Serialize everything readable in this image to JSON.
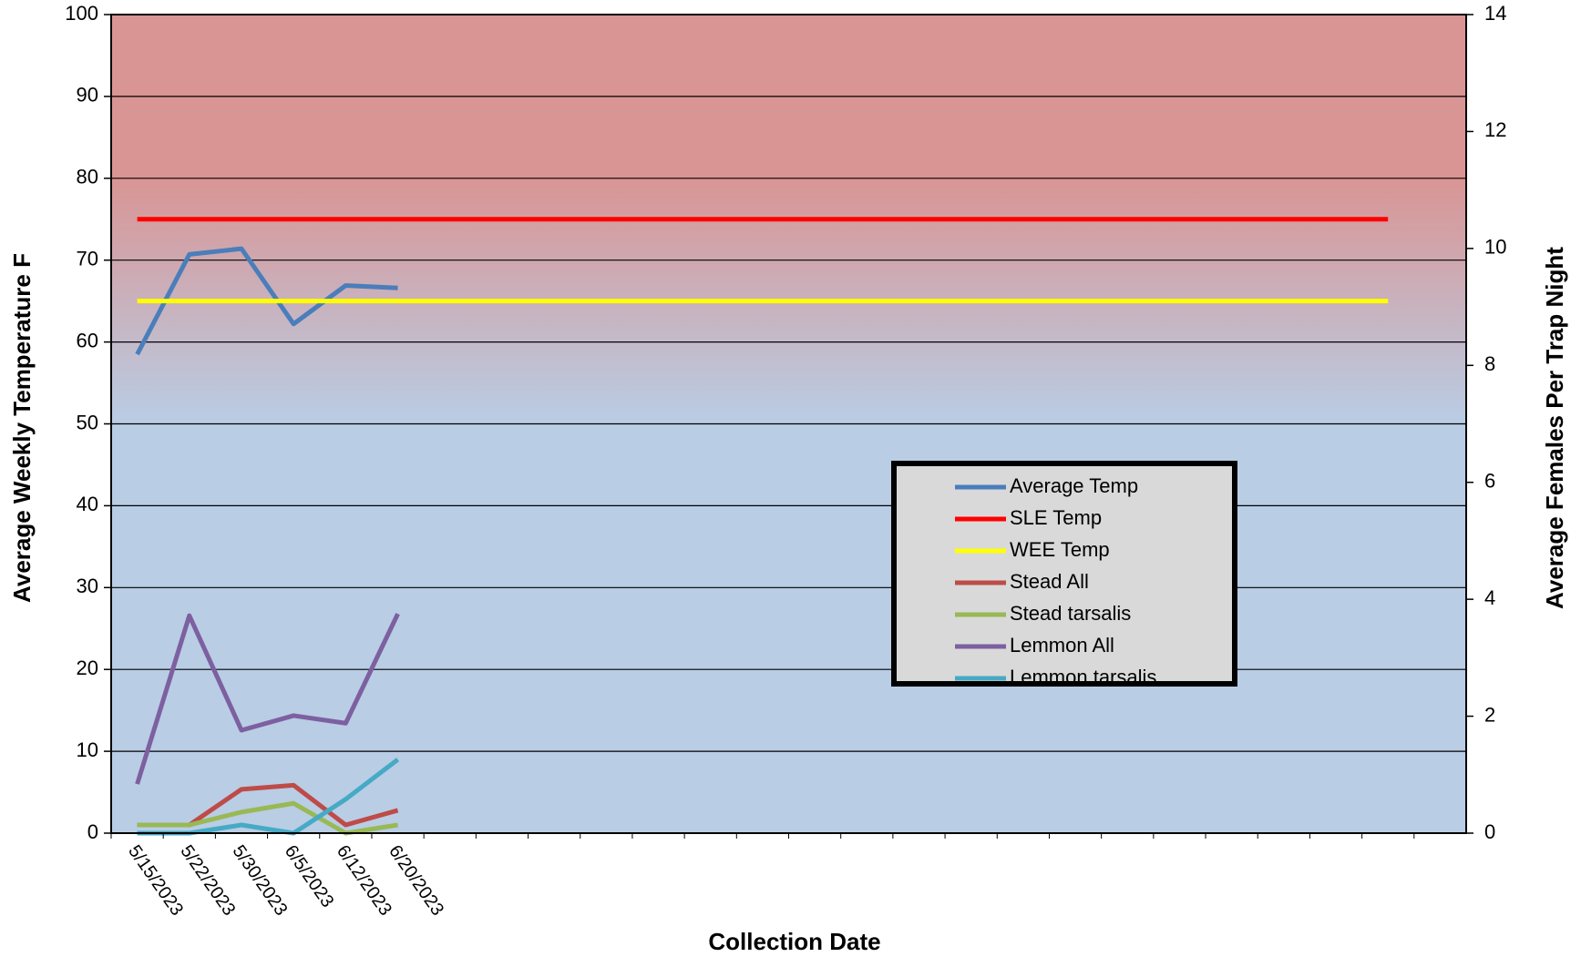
{
  "chart_data": {
    "type": "line",
    "x_label": "Collection Date",
    "y_label": "Average Weekly Temperature F",
    "y2_label": "Average Females Per Trap Night",
    "categories": [
      "5/15/2023",
      "5/22/2023",
      "5/30/2023",
      "6/5/2023",
      "6/12/2023",
      "6/20/2023",
      null,
      null,
      null,
      null,
      null,
      null,
      null,
      null,
      null,
      null,
      null,
      null,
      null,
      null,
      null,
      null,
      null,
      null,
      null,
      null
    ],
    "ylim": [
      0,
      100
    ],
    "yticks": [
      0,
      10,
      20,
      30,
      40,
      50,
      60,
      70,
      80,
      90,
      100
    ],
    "y2lim": [
      0,
      14
    ],
    "y2ticks": [
      0,
      2,
      4,
      6,
      8,
      10,
      12,
      14
    ],
    "grid": true,
    "legend": "right",
    "series": [
      {
        "name": "Average Temp",
        "color": "#4a7ebb",
        "values": [
          58.5,
          70.7,
          71.4,
          62.2,
          66.9,
          66.6,
          null,
          null,
          null,
          null,
          null,
          null,
          null,
          null,
          null,
          null,
          null,
          null,
          null,
          null,
          null,
          null,
          null,
          null,
          null,
          null
        ]
      },
      {
        "name": "SLE Temp",
        "color": "#ff0000",
        "values": [
          75,
          75,
          75,
          75,
          75,
          75,
          75,
          75,
          75,
          75,
          75,
          75,
          75,
          75,
          75,
          75,
          75,
          75,
          75,
          75,
          75,
          75,
          75,
          75,
          75,
          null
        ]
      },
      {
        "name": "WEE Temp",
        "color": "#ffff00",
        "values": [
          65,
          65,
          65,
          65,
          65,
          65,
          65,
          65,
          65,
          65,
          65,
          65,
          65,
          65,
          65,
          65,
          65,
          65,
          65,
          65,
          65,
          65,
          65,
          65,
          65,
          null
        ]
      },
      {
        "name": "Stead All",
        "color": "#be4b48",
        "axis": "y2",
        "values": [
          0.14,
          0.14,
          0.75,
          0.82,
          0.14,
          0.39,
          null,
          null,
          null,
          null,
          null,
          null,
          null,
          null,
          null,
          null,
          null,
          null,
          null,
          null,
          null,
          null,
          null,
          null,
          null,
          null
        ]
      },
      {
        "name": "Stead tarsalis",
        "color": "#98b954",
        "axis": "y2",
        "values": [
          0.14,
          0.14,
          0.36,
          0.51,
          0,
          0.14,
          null,
          null,
          null,
          null,
          null,
          null,
          null,
          null,
          null,
          null,
          null,
          null,
          null,
          null,
          null,
          null,
          null,
          null,
          null,
          null
        ]
      },
      {
        "name": "Lemmon All",
        "color": "#7d60a0",
        "axis": "y2",
        "values": [
          0.84,
          3.72,
          1.76,
          2.01,
          1.88,
          3.75,
          null,
          null,
          null,
          null,
          null,
          null,
          null,
          null,
          null,
          null,
          null,
          null,
          null,
          null,
          null,
          null,
          null,
          null,
          null,
          null
        ]
      },
      {
        "name": "Lemmon tarsalis",
        "color": "#46aac5",
        "axis": "y2",
        "values": [
          0,
          0,
          0.14,
          0,
          0.58,
          1.26,
          null,
          null,
          null,
          null,
          null,
          null,
          null,
          null,
          null,
          null,
          null,
          null,
          null,
          null,
          null,
          null,
          null,
          null,
          null,
          null
        ]
      }
    ]
  }
}
